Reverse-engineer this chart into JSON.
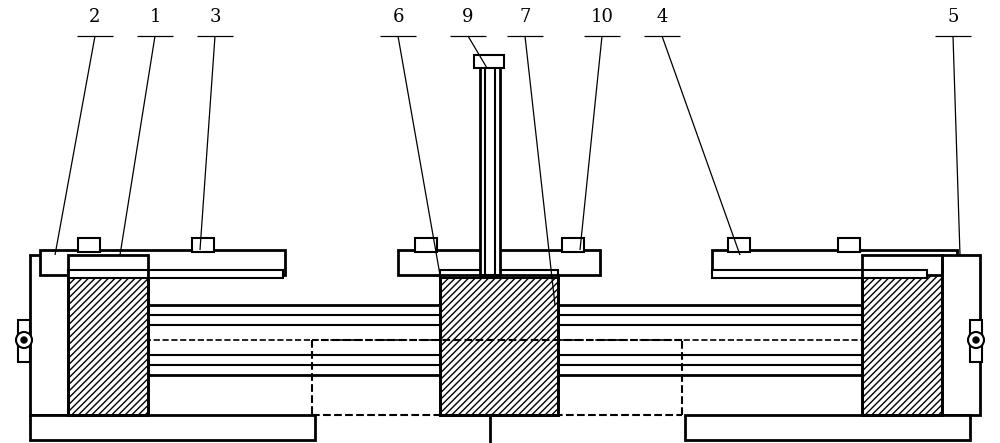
{
  "bg_color": "#ffffff",
  "line_color": "#000000",
  "lw": 1.5,
  "lw_thick": 2.0,
  "fig_width": 10.0,
  "fig_height": 4.43
}
